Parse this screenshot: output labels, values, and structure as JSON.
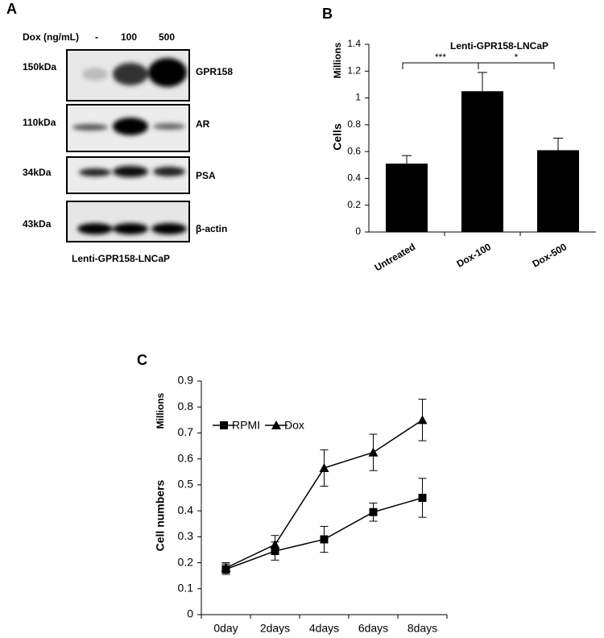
{
  "blot": {
    "label": "A",
    "dose_label": "Dox (ng/mL)",
    "doses": [
      "-",
      "100",
      "500"
    ],
    "rows": [
      {
        "size": "150kDa",
        "protein": "GPR158"
      },
      {
        "size": "110kDa",
        "protein": "AR"
      },
      {
        "size": "34kDa",
        "protein": "PSA"
      },
      {
        "size": "43kDa",
        "protein": "β-actin"
      }
    ],
    "caption": "Lenti-GPR158-LNCaP"
  },
  "chart_data": [
    {
      "type": "bar",
      "label": "B",
      "title": "Lenti-GPR158-LNCaP",
      "y_label": "Cells",
      "y_unit": "Millions",
      "categories": [
        "Untreated",
        "Dox-100",
        "Dox-500"
      ],
      "values": [
        0.51,
        1.05,
        0.61
      ],
      "errors": [
        0.06,
        0.14,
        0.09
      ],
      "color": "#000000",
      "ylim": [
        0,
        1.4
      ],
      "yticks": [
        0,
        0.2,
        0.4,
        0.6,
        0.8,
        1,
        1.2,
        1.4
      ],
      "significance": [
        {
          "from": 0,
          "to": 1,
          "label": "***"
        },
        {
          "from": 1,
          "to": 2,
          "label": "*"
        }
      ]
    },
    {
      "type": "line",
      "label": "C",
      "y_label": "Cell numbers",
      "y_unit": "Millions",
      "categories": [
        "0day",
        "2days",
        "4days",
        "6days",
        "8days"
      ],
      "series": [
        {
          "name": "RPMI",
          "color": "#000000",
          "marker": "square",
          "values": [
            0.175,
            0.245,
            0.29,
            0.395,
            0.45
          ],
          "errors": [
            0.02,
            0.035,
            0.05,
            0.035,
            0.075
          ]
        },
        {
          "name": "Dox",
          "color": "#000000",
          "marker": "triangle",
          "values": [
            0.18,
            0.27,
            0.565,
            0.625,
            0.75
          ],
          "errors": [
            0.02,
            0.035,
            0.07,
            0.07,
            0.08
          ]
        }
      ],
      "ylim": [
        0,
        0.9
      ],
      "yticks": [
        0,
        0.1,
        0.2,
        0.3,
        0.4,
        0.5,
        0.6,
        0.7,
        0.8,
        0.9
      ]
    }
  ]
}
